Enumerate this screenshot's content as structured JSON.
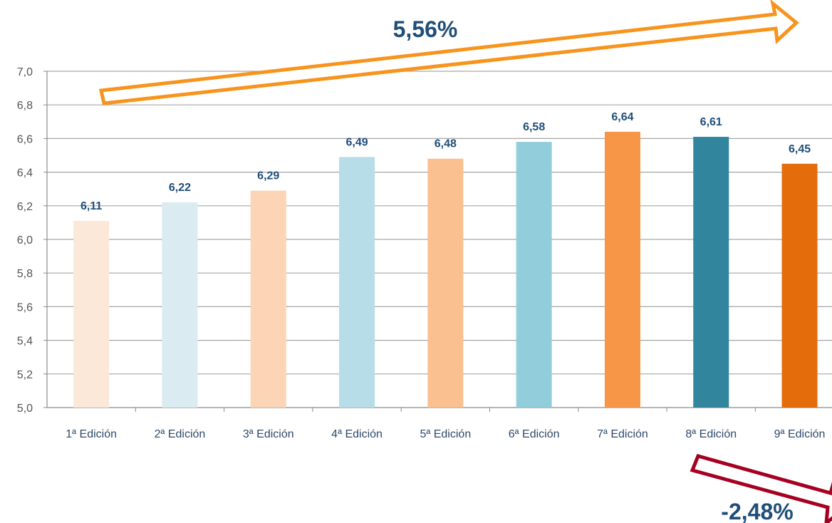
{
  "chart_data": {
    "type": "bar",
    "categories": [
      "1ª Edición",
      "2ª Edición",
      "3ª Edición",
      "4ª Edición",
      "5ª Edición",
      "6ª Edición",
      "7ª Edición",
      "8ª Edición",
      "9ª Edición"
    ],
    "values": [
      6.11,
      6.22,
      6.29,
      6.49,
      6.48,
      6.58,
      6.64,
      6.61,
      6.45
    ],
    "data_labels": [
      "6,11",
      "6,22",
      "6,29",
      "6,49",
      "6,48",
      "6,58",
      "6,64",
      "6,61",
      "6,45"
    ],
    "bar_colors": [
      "#fbe8d9",
      "#daecf2",
      "#fbd5b5",
      "#b7dde8",
      "#fac090",
      "#92cddc",
      "#f79646",
      "#31859c",
      "#e46c0a"
    ],
    "ylim": [
      5.0,
      7.0
    ],
    "yticks": [
      "5,0",
      "5,2",
      "5,4",
      "5,6",
      "5,8",
      "6,0",
      "6,2",
      "6,4",
      "6,6",
      "6,8",
      "7,0"
    ],
    "grid": true,
    "title": "",
    "xlabel": "",
    "ylabel": "",
    "annotations": [
      {
        "text": "5,56%",
        "arrow": "up",
        "color": "#f7941d"
      },
      {
        "text": "-2,48%",
        "arrow": "down",
        "color": "#a50021"
      }
    ]
  }
}
